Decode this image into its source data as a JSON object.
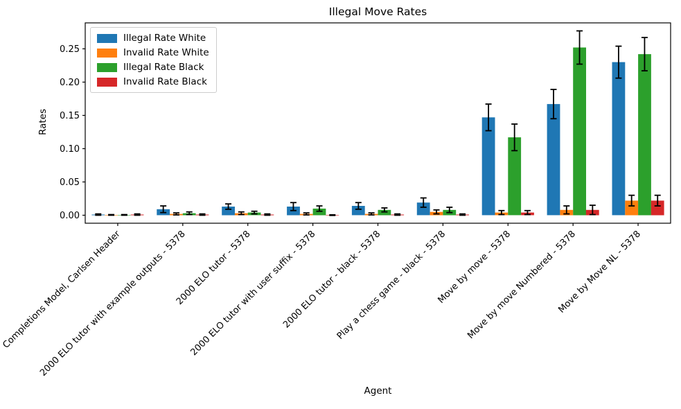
{
  "chart_data": {
    "type": "bar",
    "title": "Illegal Move Rates",
    "xlabel": "Agent",
    "ylabel": "Rates",
    "ylim": [
      -0.012,
      0.289
    ],
    "yticks": [
      0.0,
      0.05,
      0.1,
      0.15,
      0.2,
      0.25
    ],
    "grid": false,
    "legend_position": "upper-left",
    "error_bars": true,
    "categories": [
      "Completions Model, Carlsen Header",
      "2000 ELO tutor with example outputs - 5378",
      "2000 ELO tutor - 5378",
      "2000 ELO tutor with user suffix - 5378",
      "2000 ELO tutor - black - 5378",
      "Play a chess game - black - 5378",
      "Move by move - 5378",
      "Move by move Numbered - 5378",
      "Move by Move NL - 5378"
    ],
    "series": [
      {
        "name": "Illegal Rate White",
        "color": "#1f77b4",
        "values": [
          0.001,
          0.009,
          0.013,
          0.013,
          0.014,
          0.019,
          0.147,
          0.167,
          0.23
        ],
        "errors": [
          0.001,
          0.005,
          0.004,
          0.006,
          0.005,
          0.007,
          0.02,
          0.022,
          0.024
        ]
      },
      {
        "name": "Invalid Rate White",
        "color": "#ff7f0e",
        "values": [
          0.0005,
          0.002,
          0.003,
          0.002,
          0.002,
          0.005,
          0.004,
          0.008,
          0.022
        ],
        "errors": [
          0.0005,
          0.0015,
          0.002,
          0.0015,
          0.0015,
          0.003,
          0.003,
          0.006,
          0.008
        ]
      },
      {
        "name": "Illegal Rate Black",
        "color": "#2ca02c",
        "values": [
          0.0005,
          0.003,
          0.004,
          0.01,
          0.008,
          0.008,
          0.117,
          0.252,
          0.242
        ],
        "errors": [
          0.0005,
          0.002,
          0.002,
          0.004,
          0.003,
          0.004,
          0.02,
          0.025,
          0.025
        ]
      },
      {
        "name": "Invalid Rate Black",
        "color": "#d62728",
        "values": [
          0.001,
          0.001,
          0.001,
          0.0002,
          0.001,
          0.001,
          0.004,
          0.008,
          0.022
        ],
        "errors": [
          0.001,
          0.001,
          0.001,
          0.0005,
          0.001,
          0.001,
          0.003,
          0.007,
          0.008
        ]
      }
    ],
    "axis_color": "#000000",
    "errorbar_color": "#000000"
  }
}
